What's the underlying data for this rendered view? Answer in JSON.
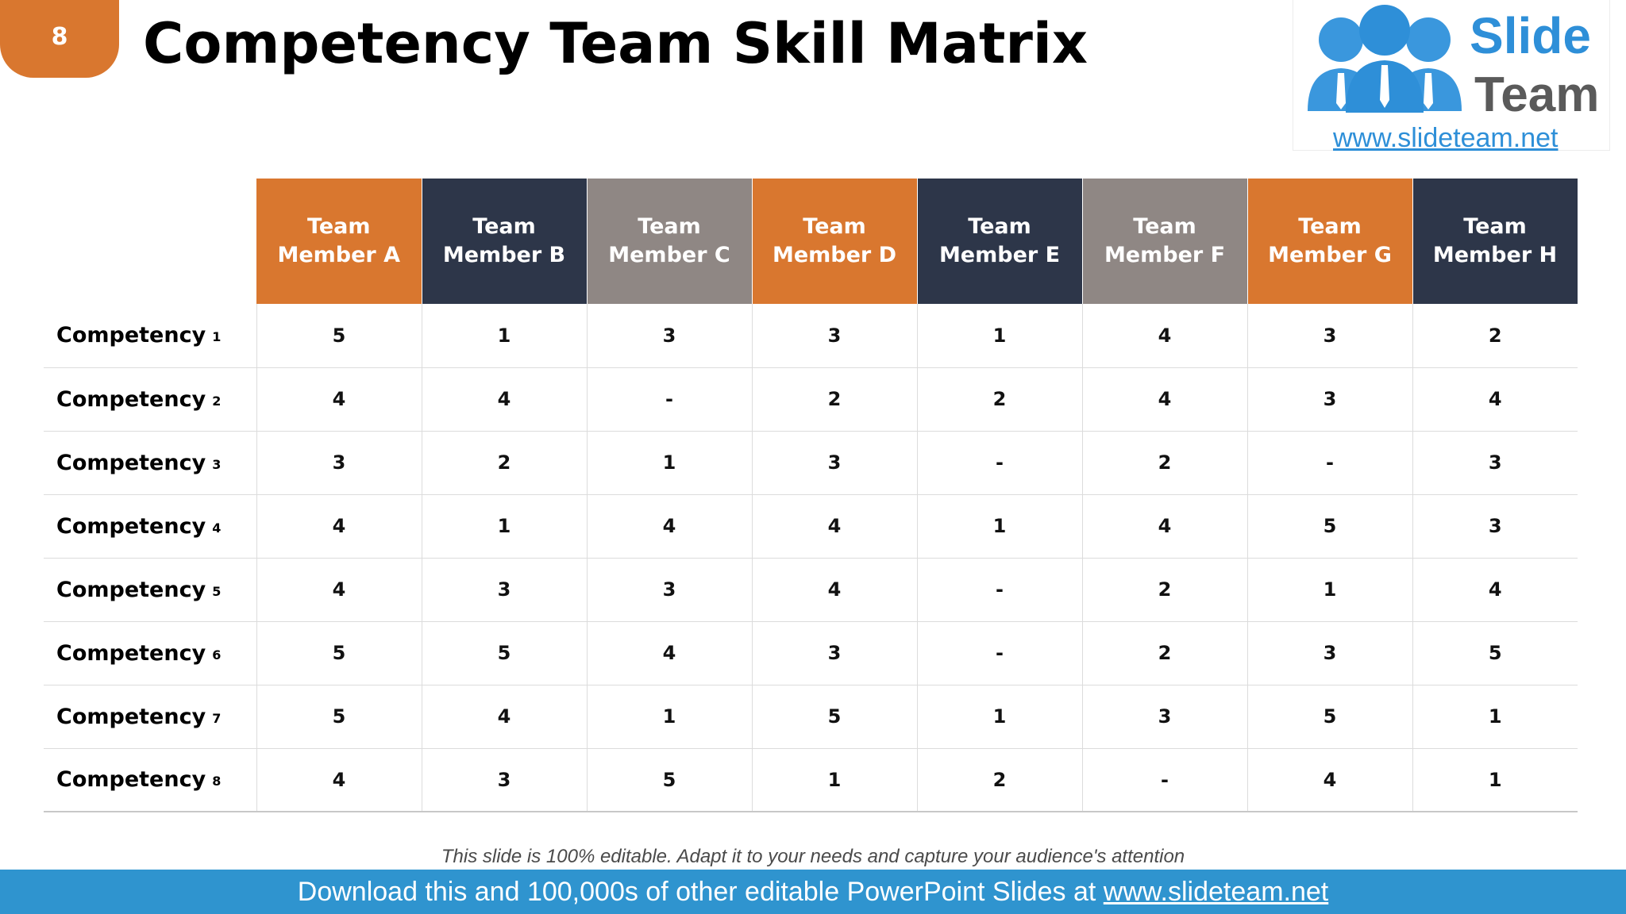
{
  "slide": {
    "number": "8",
    "title": "Competency Team Skill Matrix"
  },
  "logo": {
    "line1": "Slide",
    "line2": "Team",
    "url": "www.slideteam.net",
    "icon": "people-group-icon",
    "color": "#2e8fd8"
  },
  "table": {
    "columns": [
      {
        "line1": "Team",
        "line2": "Member A",
        "color": "#d9772f"
      },
      {
        "line1": "Team",
        "line2": "Member B",
        "color": "#2d3649"
      },
      {
        "line1": "Team",
        "line2": "Member C",
        "color": "#8f8784"
      },
      {
        "line1": "Team",
        "line2": "Member D",
        "color": "#d9772f"
      },
      {
        "line1": "Team",
        "line2": "Member E",
        "color": "#2d3649"
      },
      {
        "line1": "Team",
        "line2": "Member F",
        "color": "#8f8784"
      },
      {
        "line1": "Team",
        "line2": "Member G",
        "color": "#d9772f"
      },
      {
        "line1": "Team",
        "line2": "Member H",
        "color": "#2d3649"
      }
    ],
    "rows": [
      {
        "label": "Competency",
        "num": "1",
        "values": [
          "5",
          "1",
          "3",
          "3",
          "1",
          "4",
          "3",
          "2"
        ]
      },
      {
        "label": "Competency",
        "num": "2",
        "values": [
          "4",
          "4",
          "-",
          "2",
          "2",
          "4",
          "3",
          "4"
        ]
      },
      {
        "label": "Competency",
        "num": "3",
        "values": [
          "3",
          "2",
          "1",
          "3",
          "-",
          "2",
          "-",
          "3"
        ]
      },
      {
        "label": "Competency",
        "num": "4",
        "values": [
          "4",
          "1",
          "4",
          "4",
          "1",
          "4",
          "5",
          "3"
        ]
      },
      {
        "label": "Competency",
        "num": "5",
        "values": [
          "4",
          "3",
          "3",
          "4",
          "-",
          "2",
          "1",
          "4"
        ]
      },
      {
        "label": "Competency",
        "num": "6",
        "values": [
          "5",
          "5",
          "4",
          "3",
          "-",
          "2",
          "3",
          "5"
        ]
      },
      {
        "label": "Competency",
        "num": "7",
        "values": [
          "5",
          "4",
          "1",
          "5",
          "1",
          "3",
          "5",
          "1"
        ]
      },
      {
        "label": "Competency",
        "num": "8",
        "values": [
          "4",
          "3",
          "5",
          "1",
          "2",
          "-",
          "4",
          "1"
        ]
      }
    ]
  },
  "note": "This slide is 100% editable. Adapt it to your needs and capture your audience's attention",
  "footer": {
    "text": "Download this and 100,000s of other editable PowerPoint Slides at ",
    "link": "www.slideteam.net"
  }
}
